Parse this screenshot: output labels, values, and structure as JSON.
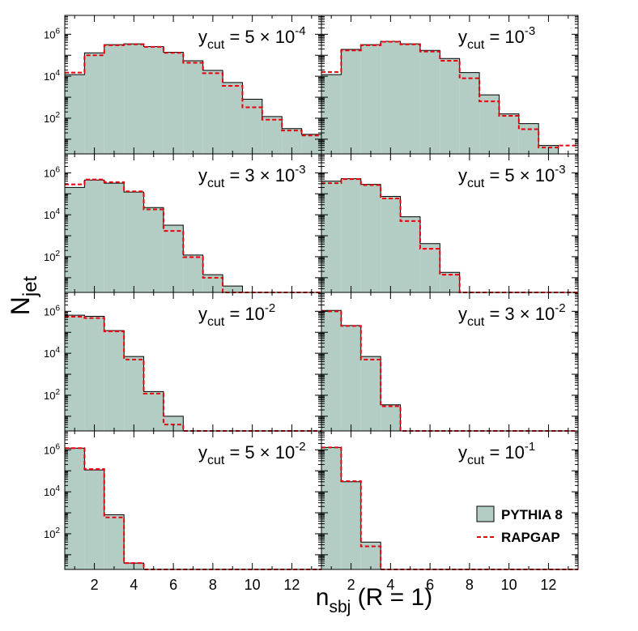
{
  "figure": {
    "ylabel_main": "N",
    "ylabel_sub": "jet",
    "xlabel_main": "n",
    "xlabel_sub": "sbj",
    "xlabel_tail": " (R = 1)"
  },
  "legend": {
    "placement": "bottom-right",
    "pythia_label": "PYTHIA 8",
    "rapgap_label": "RAPGAP"
  },
  "colors": {
    "pythia_fill": "#b3cdc4",
    "pythia_line": "#000000",
    "rapgap_line": "#e8000b"
  },
  "chart_data": [
    {
      "type": "bar",
      "cut_text": "= 5 × 10",
      "cut_exp": "-4",
      "xlim": [
        0.5,
        13.5
      ],
      "ylim_log10": [
        0.3,
        6.9
      ],
      "y_scale": "log",
      "x_ticks": [
        2,
        4,
        6,
        8,
        10,
        12
      ],
      "y_tick_exponents": [
        2,
        4,
        6
      ],
      "bins": [
        1,
        2,
        3,
        4,
        5,
        6,
        7,
        8,
        9,
        10,
        11,
        12,
        13
      ],
      "series": [
        {
          "name": "PYTHIA 8",
          "values": [
            12000.0,
            130000.0,
            320000.0,
            350000.0,
            260000.0,
            140000.0,
            55000.0,
            19000.0,
            5000.0,
            800,
            120,
            32,
            17
          ]
        },
        {
          "name": "RAPGAP",
          "values": [
            15000.0,
            100000.0,
            300000.0,
            330000.0,
            250000.0,
            130000.0,
            44000.0,
            14000.0,
            3500.0,
            330,
            85,
            26,
            15
          ]
        }
      ]
    },
    {
      "type": "bar",
      "cut_text": "= 10",
      "cut_exp": "-3",
      "xlim": [
        0.5,
        13.5
      ],
      "ylim_log10": [
        0.3,
        6.9
      ],
      "y_scale": "log",
      "x_ticks": [
        2,
        4,
        6,
        8,
        10,
        12
      ],
      "y_tick_exponents": [
        2,
        4,
        6
      ],
      "bins": [
        1,
        2,
        3,
        4,
        5,
        6,
        7,
        8,
        9,
        10,
        11,
        12,
        13
      ],
      "series": [
        {
          "name": "PYTHIA 8",
          "values": [
            12000.0,
            190000.0,
            320000.0,
            460000.0,
            350000.0,
            170000.0,
            70000.0,
            15000.0,
            1300.0,
            160,
            55,
            5,
            0
          ]
        },
        {
          "name": "RAPGAP",
          "values": [
            16000.0,
            170000.0,
            300000.0,
            440000.0,
            330000.0,
            150000.0,
            55000.0,
            8000.0,
            640,
            130,
            30,
            4,
            5
          ]
        }
      ]
    },
    {
      "type": "bar",
      "cut_text": "= 3 × 10",
      "cut_exp": "-3",
      "xlim": [
        0.5,
        13.5
      ],
      "ylim_log10": [
        0.3,
        6.9
      ],
      "y_scale": "log",
      "x_ticks": [
        2,
        4,
        6,
        8,
        10,
        12
      ],
      "y_tick_exponents": [
        2,
        4,
        6
      ],
      "bins": [
        1,
        2,
        3,
        4,
        5,
        6,
        7,
        8,
        9,
        10,
        11,
        12,
        13
      ],
      "series": [
        {
          "name": "PYTHIA 8",
          "values": [
            200000.0,
            450000.0,
            320000.0,
            120000.0,
            22000.0,
            3200.0,
            120,
            14,
            4,
            0,
            0,
            0,
            0
          ]
        },
        {
          "name": "RAPGAP",
          "values": [
            280000.0,
            480000.0,
            360000.0,
            130000.0,
            18000.0,
            1700.0,
            95,
            10,
            2,
            0,
            0,
            0,
            0
          ]
        }
      ]
    },
    {
      "type": "bar",
      "cut_text": "= 5 × 10",
      "cut_exp": "-3",
      "xlim": [
        0.5,
        13.5
      ],
      "ylim_log10": [
        0.3,
        6.9
      ],
      "y_scale": "log",
      "x_ticks": [
        2,
        4,
        6,
        8,
        10,
        12
      ],
      "y_tick_exponents": [
        2,
        4,
        6
      ],
      "bins": [
        1,
        2,
        3,
        4,
        5,
        6,
        7,
        8,
        9,
        10,
        11,
        12,
        13
      ],
      "series": [
        {
          "name": "PYTHIA 8",
          "values": [
            400000.0,
            520000.0,
            280000.0,
            75000.0,
            8000.0,
            420,
            18,
            2,
            0,
            0,
            0,
            0,
            0
          ]
        },
        {
          "name": "RAPGAP",
          "values": [
            320000.0,
            500000.0,
            260000.0,
            60000.0,
            5000.0,
            240,
            14,
            0,
            0,
            0,
            0,
            0,
            0
          ]
        }
      ]
    },
    {
      "type": "bar",
      "cut_text": "= 10",
      "cut_exp": "-2",
      "xlim": [
        0.5,
        13.5
      ],
      "ylim_log10": [
        0.3,
        6.9
      ],
      "y_scale": "log",
      "x_ticks": [
        2,
        4,
        6,
        8,
        10,
        12
      ],
      "y_tick_exponents": [
        2,
        4,
        6
      ],
      "bins": [
        1,
        2,
        3,
        4,
        5,
        6,
        7,
        8,
        9,
        10,
        11,
        12,
        13
      ],
      "series": [
        {
          "name": "PYTHIA 8",
          "values": [
            650000.0,
            580000.0,
            120000.0,
            7000.0,
            150,
            10,
            2,
            0,
            0,
            0,
            0,
            0,
            0
          ]
        },
        {
          "name": "RAPGAP",
          "values": [
            550000.0,
            480000.0,
            110000.0,
            5000.0,
            120,
            4,
            0,
            0,
            0,
            0,
            0,
            0,
            0
          ]
        }
      ]
    },
    {
      "type": "bar",
      "cut_text": "= 3 × 10",
      "cut_exp": "-2",
      "xlim": [
        0.5,
        13.5
      ],
      "ylim_log10": [
        0.3,
        6.9
      ],
      "y_scale": "log",
      "x_ticks": [
        2,
        4,
        6,
        8,
        10,
        12
      ],
      "y_tick_exponents": [
        2,
        4,
        6
      ],
      "bins": [
        1,
        2,
        3,
        4,
        5,
        6,
        7,
        8,
        9,
        10,
        11,
        12,
        13
      ],
      "series": [
        {
          "name": "PYTHIA 8",
          "values": [
            1100000.0,
            210000.0,
            7000.0,
            35,
            0,
            0,
            0,
            0,
            0,
            0,
            0,
            0,
            0
          ]
        },
        {
          "name": "RAPGAP",
          "values": [
            1000000.0,
            200000.0,
            5000.0,
            30,
            0,
            0,
            0,
            0,
            0,
            0,
            0,
            0,
            0
          ]
        }
      ]
    },
    {
      "type": "bar",
      "cut_text": "= 5 × 10",
      "cut_exp": "-2",
      "xlim": [
        0.5,
        13.5
      ],
      "ylim_log10": [
        0.3,
        6.9
      ],
      "y_scale": "log",
      "x_ticks": [
        2,
        4,
        6,
        8,
        10,
        12
      ],
      "y_tick_exponents": [
        2,
        4,
        6
      ],
      "bins": [
        1,
        2,
        3,
        4,
        5,
        6,
        7,
        8,
        9,
        10,
        11,
        12,
        13
      ],
      "series": [
        {
          "name": "PYTHIA 8",
          "values": [
            1200000.0,
            110000.0,
            800,
            4,
            0,
            0,
            0,
            0,
            0,
            0,
            0,
            0,
            0
          ]
        },
        {
          "name": "RAPGAP",
          "values": [
            1200000.0,
            120000.0,
            600,
            4,
            0,
            0,
            0,
            0,
            0,
            0,
            0,
            0,
            0
          ]
        }
      ]
    },
    {
      "type": "bar",
      "cut_text": "= 10",
      "cut_exp": "-1",
      "xlim": [
        0.5,
        13.5
      ],
      "ylim_log10": [
        0.3,
        6.9
      ],
      "y_scale": "log",
      "x_ticks": [
        2,
        4,
        6,
        8,
        10,
        12
      ],
      "y_tick_exponents": [
        2,
        4,
        6
      ],
      "bins": [
        1,
        2,
        3,
        4,
        5,
        6,
        7,
        8,
        9,
        10,
        11,
        12,
        13
      ],
      "series": [
        {
          "name": "PYTHIA 8",
          "values": [
            1300000.0,
            30000.0,
            40,
            0,
            0,
            0,
            0,
            0,
            0,
            0,
            0,
            0,
            0
          ]
        },
        {
          "name": "RAPGAP",
          "values": [
            1300000.0,
            32000.0,
            25,
            0,
            0,
            0,
            0,
            0,
            0,
            0,
            0,
            0,
            0
          ]
        }
      ]
    }
  ]
}
